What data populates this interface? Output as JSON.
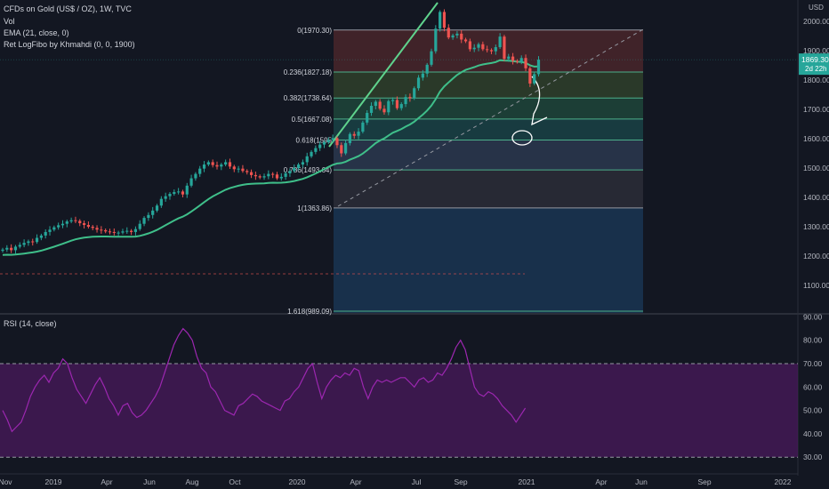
{
  "header": {
    "symbol_line": "CFDs on Gold (US$ / OZ), 1W, TVC",
    "vol_label": "Vol",
    "ema_label": "EMA (21, close, 0)",
    "fib_label": "Ret LogFibo by Khmahdi (0, 0, 1900)"
  },
  "rsi_panel": {
    "label": "RSI (14, close)"
  },
  "price_axis": {
    "currency": "USD",
    "last_price": "1869.30",
    "countdown": "2d 22h"
  },
  "colors": {
    "background": "#131722",
    "bull": "#26a69a",
    "bear": "#ef5350",
    "ema": "#3fbf8a",
    "rsi_line": "#9c27b0",
    "rsi_band": "#4a1a5c",
    "trendline": "#5fd38d"
  },
  "chart_data": [
    {
      "type": "candlestick",
      "title": "CFDs on Gold (US$ / OZ), 1W, TVC",
      "ylim": [
        1040,
        2080
      ],
      "y_ticks": [
        1100,
        1200,
        1300,
        1400,
        1500,
        1600,
        1700,
        1800,
        1900,
        2000
      ],
      "y_tick_labels": [
        "1100.00",
        "1200.00",
        "1300.00",
        "1400.00",
        "1500.00",
        "1600.00",
        "1700.00",
        "1800.00",
        "1900.00",
        "2000.00"
      ],
      "x_tick_labels": [
        "Nov",
        "2019",
        "Apr",
        "Jun",
        "Aug",
        "Oct",
        "2020",
        "Apr",
        "Jul",
        "Sep",
        "2021",
        "Apr",
        "Jun",
        "Sep",
        "2022"
      ],
      "close_series": [
        1222,
        1228,
        1220,
        1232,
        1238,
        1245,
        1250,
        1248,
        1262,
        1270,
        1282,
        1290,
        1298,
        1305,
        1310,
        1318,
        1322,
        1320,
        1312,
        1306,
        1300,
        1296,
        1290,
        1288,
        1284,
        1282,
        1280,
        1280,
        1284,
        1286,
        1282,
        1292,
        1310,
        1330,
        1340,
        1355,
        1372,
        1395,
        1404,
        1412,
        1418,
        1420,
        1410,
        1440,
        1465,
        1480,
        1498,
        1512,
        1520,
        1510,
        1505,
        1512,
        1520,
        1505,
        1496,
        1498,
        1490,
        1486,
        1476,
        1472,
        1468,
        1472,
        1480,
        1478,
        1465,
        1470,
        1482,
        1490,
        1500,
        1512,
        1520,
        1540,
        1555,
        1568,
        1580,
        1588,
        1596,
        1602,
        1578,
        1550,
        1585,
        1616,
        1610,
        1624,
        1655,
        1688,
        1712,
        1726,
        1702,
        1690,
        1728,
        1732,
        1704,
        1718,
        1742,
        1738,
        1772,
        1808,
        1822,
        1852,
        1898,
        1975,
        2032,
        1978,
        1945,
        1952,
        1958,
        1938,
        1932,
        1905,
        1910,
        1922,
        1905,
        1902,
        1898,
        1912,
        1948,
        1872,
        1880,
        1865,
        1862,
        1875,
        1840,
        1788,
        1820,
        1869.3
      ],
      "ema_label": "EMA (21, close, 0)",
      "last_price": 1869.3
    },
    {
      "type": "fibonacci_retracement",
      "label": "Ret LogFibo by Khmahdi (0, 0, 1900)",
      "levels": [
        {
          "ratio": "0",
          "price": 1970.3,
          "label": "0(1970.30)"
        },
        {
          "ratio": "0.236",
          "price": 1827.18,
          "label": "0.236(1827.18)"
        },
        {
          "ratio": "0.382",
          "price": 1738.64,
          "label": "0.382(1738.64)"
        },
        {
          "ratio": "0.5",
          "price": 1667.08,
          "label": "0.5(1667.08)"
        },
        {
          "ratio": "0.618",
          "price": 1595.52,
          "label": "0.618(1595"
        },
        {
          "ratio": "0.786",
          "price": 1493.64,
          "label": "0.786(1493.64)"
        },
        {
          "ratio": "1",
          "price": 1363.86,
          "label": "1(1363.86)"
        },
        {
          "ratio": "1.618",
          "price": 989.09,
          "label": "1.618(989.09)"
        }
      ]
    },
    {
      "type": "line",
      "title": "RSI (14, close)",
      "ylim": [
        25,
        90
      ],
      "y_ticks": [
        30,
        40,
        50,
        60,
        70,
        80,
        90
      ],
      "y_tick_labels": [
        "30.00",
        "40.00",
        "50.00",
        "60.00",
        "70.00",
        "80.00",
        "90.00"
      ],
      "bands": [
        30,
        70
      ],
      "values": [
        50,
        46,
        41,
        43,
        45,
        50,
        56,
        60,
        63,
        65,
        62,
        66,
        68,
        72,
        70,
        64,
        59,
        56,
        53,
        57,
        61,
        64,
        60,
        55,
        52,
        48,
        52,
        53,
        49,
        47,
        48,
        50,
        53,
        56,
        60,
        66,
        72,
        78,
        82,
        85,
        83,
        80,
        73,
        68,
        66,
        60,
        58,
        54,
        50,
        49,
        48,
        52,
        53,
        55,
        57,
        56,
        54,
        53,
        52,
        51,
        50,
        54,
        55,
        58,
        60,
        64,
        68,
        70,
        62,
        55,
        60,
        63,
        65,
        64,
        66,
        65,
        68,
        67,
        60,
        55,
        60,
        63,
        62,
        63,
        62,
        63,
        64,
        64,
        62,
        60,
        63,
        64,
        62,
        63,
        66,
        65,
        68,
        72,
        77,
        80,
        76,
        68,
        60,
        57,
        56,
        58,
        57,
        55,
        52,
        50,
        48,
        45,
        48,
        51
      ]
    }
  ]
}
